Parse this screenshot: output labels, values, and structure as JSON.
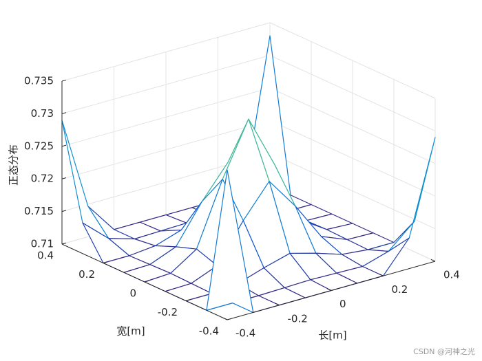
{
  "chart_data": {
    "type": "mesh",
    "x": [
      -0.4,
      -0.3,
      -0.2,
      -0.1,
      0,
      0.1,
      0.2,
      0.3,
      0.4
    ],
    "y": [
      -0.4,
      -0.3,
      -0.2,
      -0.1,
      0,
      0.1,
      0.2,
      0.3,
      0.4
    ],
    "z": [
      [
        0.733,
        0.71,
        0.71,
        0.71,
        0.71,
        0.71,
        0.71,
        0.7147,
        0.729
      ],
      [
        0.71,
        0.71,
        0.71,
        0.7101,
        0.7102,
        0.7101,
        0.71,
        0.7112,
        0.7147
      ],
      [
        0.71,
        0.71,
        0.7104,
        0.7117,
        0.7128,
        0.7117,
        0.7104,
        0.71,
        0.71
      ],
      [
        0.71,
        0.7101,
        0.7117,
        0.7175,
        0.7224,
        0.7175,
        0.7117,
        0.7101,
        0.71
      ],
      [
        0.71,
        0.7102,
        0.7128,
        0.7224,
        0.7305,
        0.7224,
        0.7128,
        0.7102,
        0.71
      ],
      [
        0.71,
        0.7101,
        0.7117,
        0.7175,
        0.7224,
        0.7175,
        0.7117,
        0.7101,
        0.71
      ],
      [
        0.71,
        0.71,
        0.7104,
        0.7117,
        0.7128,
        0.7117,
        0.7104,
        0.71,
        0.71
      ],
      [
        0.7147,
        0.7112,
        0.71,
        0.7101,
        0.7102,
        0.7101,
        0.71,
        0.71,
        0.71
      ],
      [
        0.729,
        0.7147,
        0.71,
        0.71,
        0.71,
        0.71,
        0.71,
        0.71,
        0.733
      ]
    ],
    "xlim": [
      -0.4,
      0.4
    ],
    "ylim": [
      -0.4,
      0.4
    ],
    "zlim": [
      0.71,
      0.735
    ],
    "xticks": [
      -0.4,
      -0.2,
      0,
      0.2,
      0.4
    ],
    "yticks": [
      -0.4,
      -0.2,
      0,
      0.2,
      0.4
    ],
    "zticks": [
      0.71,
      0.715,
      0.72,
      0.725,
      0.73,
      0.735
    ],
    "xlabel": "长[m]",
    "ylabel": "宽[m]",
    "zlabel": "正态分布",
    "grid": true,
    "colormap": [
      "#352a87",
      "#0f5cdd",
      "#1481d6",
      "#06a4ca",
      "#2eb7a4",
      "#87bf77",
      "#d1bb59",
      "#fec832",
      "#f9fb0e"
    ]
  },
  "watermark": "CSDN @河神之光"
}
